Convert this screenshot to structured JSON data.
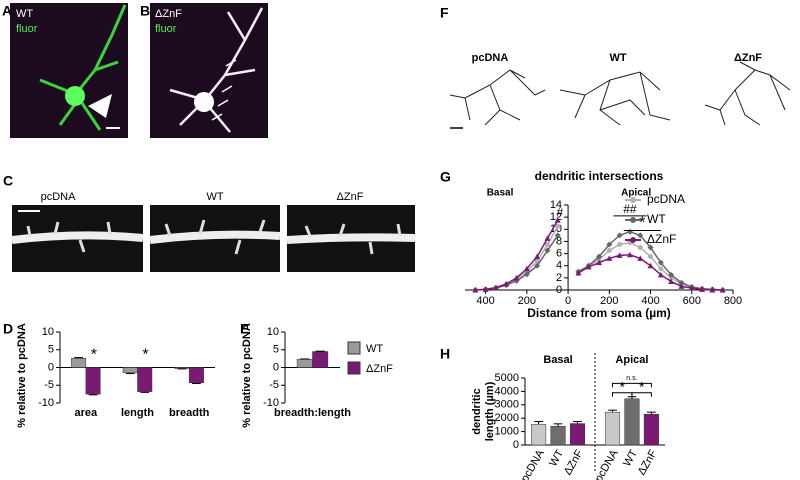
{
  "images": [
    {
      "label": "A",
      "texts": [
        "WT",
        "fluor"
      ]
    },
    {
      "label": "B",
      "texts": [
        "ΔZnF",
        "fluor"
      ]
    },
    {
      "label": "C",
      "captions": [
        "pcDNA",
        "WT",
        "ΔZnF"
      ]
    },
    {
      "label": "F",
      "captions": [
        "pcDNA",
        "WT",
        "ΔZnF"
      ]
    }
  ],
  "chart_data": [
    {
      "panel": "D",
      "type": "bar",
      "ylabel": "% relative to pcDNA",
      "categories": [
        "area",
        "length",
        "breadth"
      ],
      "series": [
        {
          "name": "WT",
          "color": "#9a9a9a",
          "values": [
            2.6,
            -1.5,
            -0.3
          ],
          "errors": [
            0.2,
            0.2,
            0.1
          ]
        },
        {
          "name": "ΔZnF",
          "color": "#7b1a74",
          "values": [
            -7.5,
            -6.8,
            -4.3
          ],
          "errors": [
            0.2,
            0.2,
            0.2
          ]
        }
      ],
      "ylim": [
        -10,
        10
      ],
      "yticks": [
        -10,
        -5,
        0,
        5,
        10
      ],
      "annotations": [
        "*",
        "*"
      ]
    },
    {
      "panel": "E",
      "type": "bar",
      "ylabel": "% relative to pcDNA",
      "categories": [
        "breadth:length"
      ],
      "series": [
        {
          "name": "WT",
          "color": "#9a9a9a",
          "values": [
            2.3
          ],
          "errors": [
            0.1
          ]
        },
        {
          "name": "ΔZnF",
          "color": "#7b1a74",
          "values": [
            4.5
          ],
          "errors": [
            0.1
          ]
        }
      ],
      "ylim": [
        -10,
        10
      ],
      "yticks": [
        -10,
        -5,
        0,
        5,
        10
      ],
      "legend": true
    },
    {
      "panel": "G",
      "type": "line",
      "title": "dendritic intersections",
      "xlabel": "Distance from soma (µm)",
      "x": [
        -450,
        -400,
        -350,
        -300,
        -250,
        -200,
        -150,
        -100,
        -50,
        0,
        50,
        100,
        150,
        200,
        250,
        300,
        350,
        400,
        450,
        500,
        550,
        600,
        650,
        700,
        750
      ],
      "series": [
        {
          "name": "pcDNA",
          "color": "#b0b0b0",
          "marker": "circle",
          "values": [
            0,
            0.1,
            0.4,
            0.9,
            1.8,
            3,
            4.8,
            7.5,
            10.5,
            null,
            3,
            4,
            5,
            6.5,
            7.5,
            7.8,
            7,
            5.5,
            3.5,
            2,
            1,
            0.5,
            0.2,
            0.1,
            0
          ]
        },
        {
          "name": "WT",
          "color": "#666666",
          "marker": "diamond",
          "values": [
            0,
            0.1,
            0.3,
            0.8,
            1.5,
            2.6,
            4,
            6.5,
            9,
            null,
            3,
            4,
            5.5,
            7.5,
            9,
            9.6,
            9,
            7,
            4.5,
            2.5,
            1.2,
            0.5,
            0.2,
            0.1,
            0
          ]
        },
        {
          "name": "ΔZnF",
          "color": "#7b1a74",
          "marker": "triangle",
          "values": [
            0,
            0.1,
            0.4,
            1,
            2,
            3.5,
            5.5,
            8.5,
            11.5,
            null,
            2.8,
            3.8,
            4.5,
            5.2,
            5.7,
            5.8,
            5.2,
            4,
            2.5,
            1.4,
            0.6,
            0.3,
            0.1,
            0,
            0
          ]
        }
      ],
      "xlim": [
        -500,
        800
      ],
      "xticks": [
        {
          "value": -400,
          "label": "400"
        },
        {
          "value": -200,
          "label": "200"
        },
        0,
        200,
        400,
        600,
        800
      ],
      "ylim": [
        0,
        14
      ],
      "yticks": [
        0,
        2,
        4,
        6,
        8,
        10,
        12,
        14
      ],
      "annotations": [
        "Basal",
        "Apical",
        "#",
        "##",
        "*"
      ],
      "legend": true
    },
    {
      "panel": "H",
      "type": "bar",
      "ylabel": [
        "dendritic",
        "length (µm)"
      ],
      "groups": [
        "Basal",
        "Apical"
      ],
      "categories": [
        "pcDNA",
        "WT",
        "ΔZnF",
        "pcDNA",
        "WT",
        "ΔZnF"
      ],
      "values": [
        1550,
        1400,
        1600,
        2450,
        3450,
        2300
      ],
      "errors": [
        200,
        180,
        150,
        150,
        150,
        150
      ],
      "colors": [
        "#c8c8c8",
        "#6e6e6e",
        "#7b1a74",
        "#c8c8c8",
        "#6e6e6e",
        "#7b1a74"
      ],
      "ylim": [
        0,
        5000
      ],
      "yticks": [
        0,
        1000,
        2000,
        3000,
        4000,
        5000
      ],
      "annotations": [
        "n.s.",
        "*",
        "*"
      ]
    }
  ]
}
